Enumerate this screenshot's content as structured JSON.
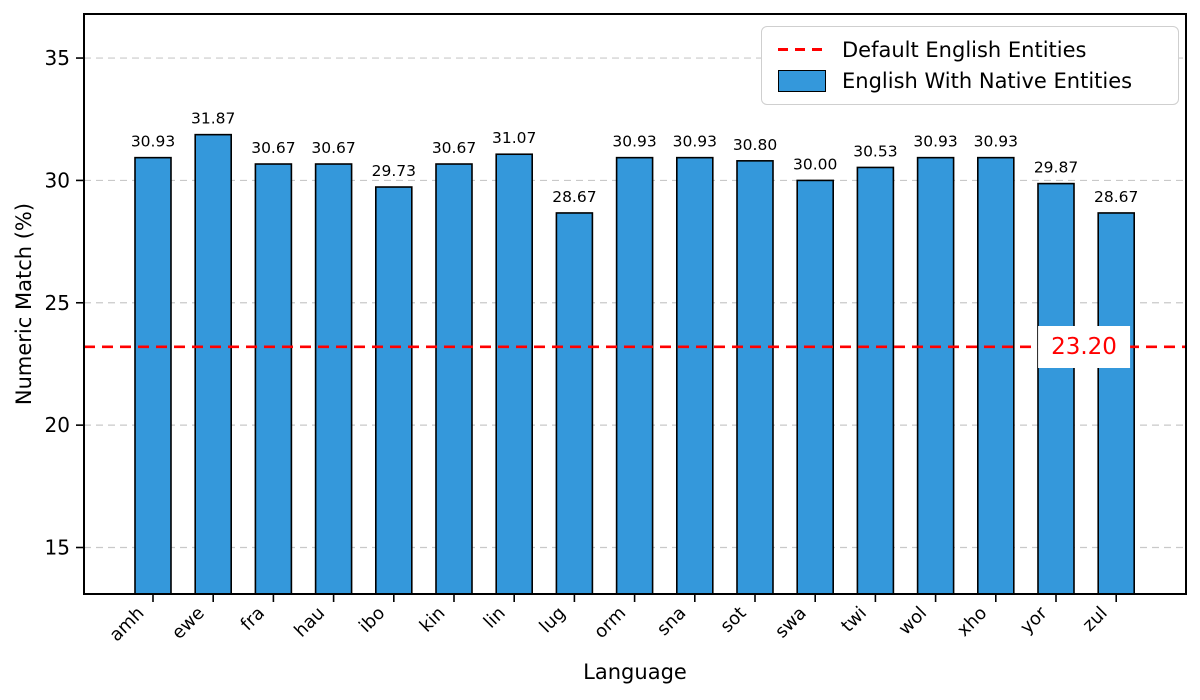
{
  "chart_data": {
    "type": "bar",
    "title": "",
    "xlabel": "Language",
    "ylabel": "Numeric Match (%)",
    "categories": [
      "amh",
      "ewe",
      "fra",
      "hau",
      "ibo",
      "kin",
      "lin",
      "lug",
      "orm",
      "sna",
      "sot",
      "swa",
      "twi",
      "wol",
      "xho",
      "yor",
      "zul"
    ],
    "values": [
      30.93,
      31.87,
      30.67,
      30.67,
      29.73,
      30.67,
      31.07,
      28.67,
      30.93,
      30.93,
      30.8,
      30.0,
      30.53,
      30.93,
      30.93,
      29.87,
      28.67
    ],
    "value_label_decimals": 2,
    "ylim": [
      13.1,
      36.8
    ],
    "yticks": [
      15,
      20,
      25,
      30,
      35
    ],
    "grid": "horizontal dashed",
    "threshold": {
      "value": 23.2,
      "label": "23.20"
    },
    "colors": {
      "bar": "#3498db",
      "bar_edge": "#000000",
      "threshold": "#ff0000",
      "grid": "#c9c9c9",
      "axis": "#000000"
    },
    "legend": {
      "position": "upper right",
      "entries": [
        {
          "label": "Default English Entities",
          "swatch": "dashed-line",
          "color": "#ff0000"
        },
        {
          "label": "English With Native Entities",
          "swatch": "filled-bar",
          "color": "#3498db"
        }
      ]
    }
  }
}
